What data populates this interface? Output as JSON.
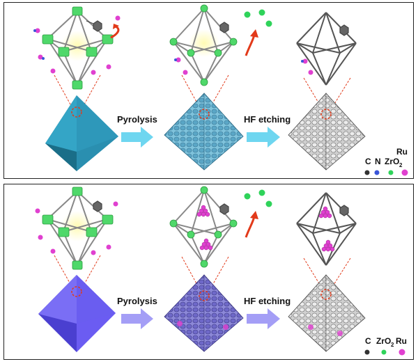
{
  "panels": [
    {
      "id": "top",
      "step1_label": "Pyrolysis",
      "step2_label": "HF etching",
      "octahedron_color": "#2a8fb0",
      "arrow_color": "#5ed1ee",
      "legend": [
        "C",
        "N",
        "ZrO",
        "Ru"
      ],
      "legend_colors": [
        "#333333",
        "#3a55d8",
        "#2fd35a",
        "#e040d0"
      ]
    },
    {
      "id": "bottom",
      "step1_label": "Pyrolysis",
      "step2_label": "HF etching",
      "octahedron_color": "#6b5cf2",
      "arrow_color": "#9a93f5",
      "legend": [
        "C",
        "ZrO",
        "Ru"
      ],
      "legend_colors": [
        "#333333",
        "#2fd35a",
        "#e040d0"
      ]
    }
  ],
  "subscript_2": "2"
}
